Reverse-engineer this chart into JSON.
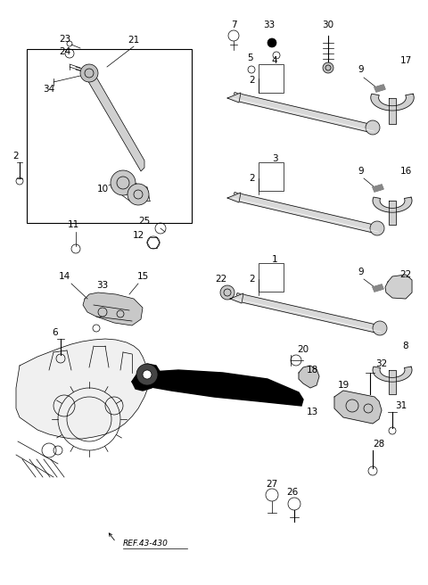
{
  "bg": "#ffffff",
  "lc": "#000000",
  "fw": 4.8,
  "fh": 6.56,
  "dpi": 100,
  "ref_text": "REF.43-430"
}
